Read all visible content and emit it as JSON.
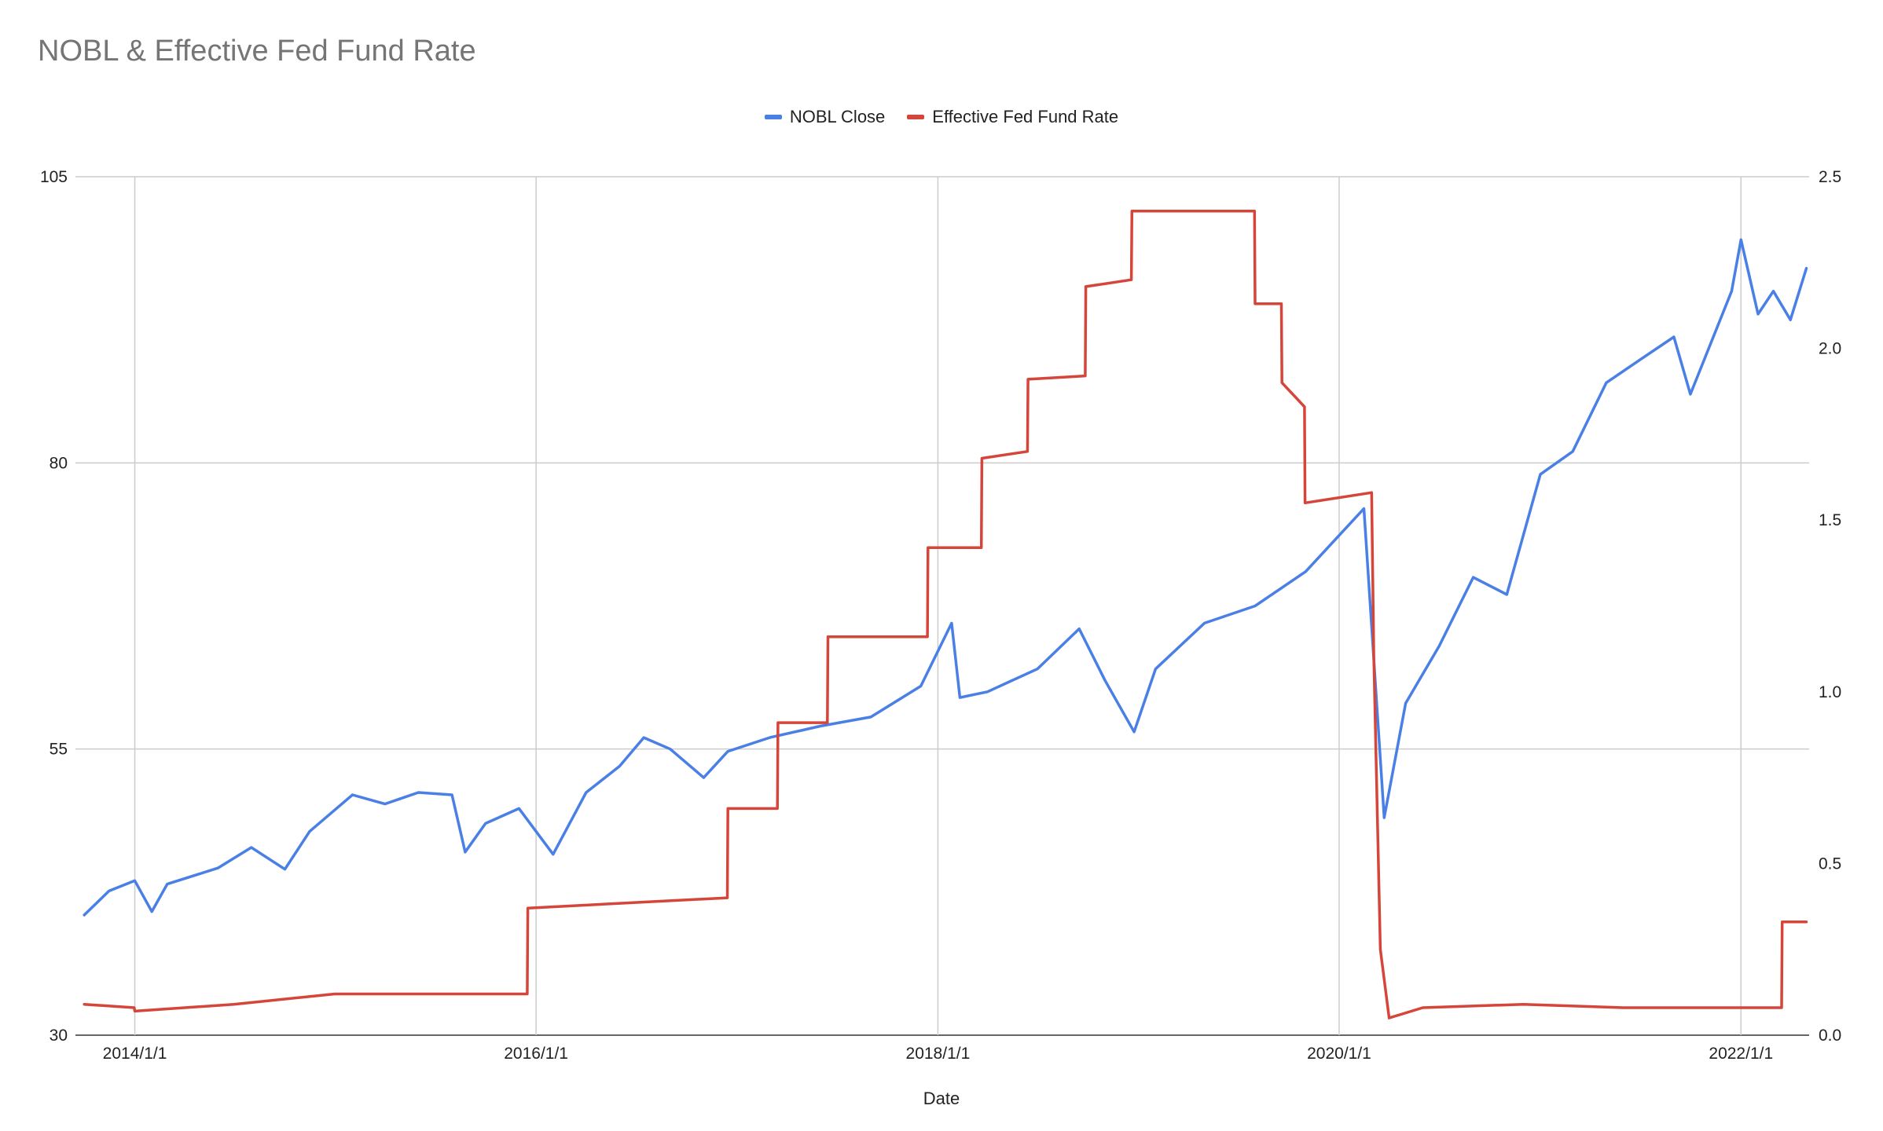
{
  "chart_data": {
    "type": "line",
    "title": "NOBL & Effective Fed Fund Rate",
    "xlabel": "Date",
    "x_ticks": [
      "2014/1/1",
      "2016/1/1",
      "2018/1/1",
      "2020/1/1",
      "2022/1/1"
    ],
    "y_left": {
      "min": 30,
      "max": 105,
      "ticks": [
        "30",
        "55",
        "80",
        "105"
      ]
    },
    "y_right": {
      "min": 0.0,
      "max": 2.5,
      "ticks": [
        "0.0",
        "0.5",
        "1.0",
        "1.5",
        "2.0",
        "2.5"
      ]
    },
    "legend_position": "top",
    "grid": true,
    "series": [
      {
        "name": "NOBL Close",
        "axis": "left",
        "color": "#4a7fe6",
        "points": [
          [
            "2013-10-01",
            40.5
          ],
          [
            "2013-11-15",
            42.6
          ],
          [
            "2014-01-01",
            43.5
          ],
          [
            "2014-02-01",
            40.8
          ],
          [
            "2014-03-01",
            43.2
          ],
          [
            "2014-06-01",
            44.6
          ],
          [
            "2014-08-01",
            46.4
          ],
          [
            "2014-10-01",
            44.5
          ],
          [
            "2014-11-15",
            47.8
          ],
          [
            "2015-02-01",
            51.0
          ],
          [
            "2015-04-01",
            50.2
          ],
          [
            "2015-06-01",
            51.2
          ],
          [
            "2015-08-01",
            51.0
          ],
          [
            "2015-08-25",
            46.0
          ],
          [
            "2015-10-01",
            48.5
          ],
          [
            "2015-12-01",
            49.8
          ],
          [
            "2016-02-01",
            45.8
          ],
          [
            "2016-04-01",
            51.2
          ],
          [
            "2016-06-01",
            53.5
          ],
          [
            "2016-07-15",
            56.0
          ],
          [
            "2016-09-01",
            55.0
          ],
          [
            "2016-11-01",
            52.5
          ],
          [
            "2016-12-15",
            54.8
          ],
          [
            "2017-03-01",
            56.0
          ],
          [
            "2017-06-01",
            57.0
          ],
          [
            "2017-09-01",
            57.8
          ],
          [
            "2017-12-01",
            60.5
          ],
          [
            "2018-01-26",
            66.0
          ],
          [
            "2018-02-10",
            59.5
          ],
          [
            "2018-04-01",
            60.0
          ],
          [
            "2018-07-01",
            62.0
          ],
          [
            "2018-09-15",
            65.5
          ],
          [
            "2018-11-01",
            61.0
          ],
          [
            "2018-12-24",
            56.5
          ],
          [
            "2019-02-01",
            62.0
          ],
          [
            "2019-05-01",
            66.0
          ],
          [
            "2019-08-01",
            67.5
          ],
          [
            "2019-11-01",
            70.5
          ],
          [
            "2020-02-15",
            76.0
          ],
          [
            "2020-03-23",
            49.0
          ],
          [
            "2020-05-01",
            59.0
          ],
          [
            "2020-07-01",
            64.0
          ],
          [
            "2020-09-01",
            70.0
          ],
          [
            "2020-11-01",
            68.5
          ],
          [
            "2021-01-01",
            79.0
          ],
          [
            "2021-03-01",
            81.0
          ],
          [
            "2021-05-01",
            87.0
          ],
          [
            "2021-07-01",
            89.0
          ],
          [
            "2021-09-01",
            91.0
          ],
          [
            "2021-10-01",
            86.0
          ],
          [
            "2021-12-15",
            95.0
          ],
          [
            "2022-01-01",
            99.5
          ],
          [
            "2022-02-01",
            93.0
          ],
          [
            "2022-03-01",
            95.0
          ],
          [
            "2022-04-01",
            92.5
          ],
          [
            "2022-04-30",
            97.0
          ]
        ]
      },
      {
        "name": "Effective Fed Fund Rate",
        "axis": "right",
        "color": "#d6453a",
        "points": [
          [
            "2013-10-01",
            0.09
          ],
          [
            "2013-12-31",
            0.08
          ],
          [
            "2014-01-01",
            0.07
          ],
          [
            "2014-06-30",
            0.09
          ],
          [
            "2014-12-31",
            0.12
          ],
          [
            "2015-12-16",
            0.12
          ],
          [
            "2015-12-17",
            0.37
          ],
          [
            "2016-12-14",
            0.4
          ],
          [
            "2016-12-15",
            0.66
          ],
          [
            "2017-03-15",
            0.66
          ],
          [
            "2017-03-16",
            0.91
          ],
          [
            "2017-06-14",
            0.91
          ],
          [
            "2017-06-15",
            1.16
          ],
          [
            "2017-12-13",
            1.16
          ],
          [
            "2017-12-14",
            1.42
          ],
          [
            "2018-03-21",
            1.42
          ],
          [
            "2018-03-22",
            1.68
          ],
          [
            "2018-06-13",
            1.7
          ],
          [
            "2018-06-14",
            1.91
          ],
          [
            "2018-09-26",
            1.92
          ],
          [
            "2018-09-27",
            2.18
          ],
          [
            "2018-12-19",
            2.2
          ],
          [
            "2018-12-20",
            2.4
          ],
          [
            "2019-07-31",
            2.4
          ],
          [
            "2019-08-01",
            2.13
          ],
          [
            "2019-09-18",
            2.13
          ],
          [
            "2019-09-19",
            1.9
          ],
          [
            "2019-10-30",
            1.83
          ],
          [
            "2019-10-31",
            1.55
          ],
          [
            "2020-02-29",
            1.58
          ],
          [
            "2020-03-04",
            1.1
          ],
          [
            "2020-03-16",
            0.25
          ],
          [
            "2020-04-01",
            0.05
          ],
          [
            "2020-06-01",
            0.08
          ],
          [
            "2020-12-01",
            0.09
          ],
          [
            "2021-06-01",
            0.08
          ],
          [
            "2021-12-01",
            0.08
          ],
          [
            "2022-03-16",
            0.08
          ],
          [
            "2022-03-17",
            0.33
          ],
          [
            "2022-04-30",
            0.33
          ]
        ]
      }
    ]
  }
}
